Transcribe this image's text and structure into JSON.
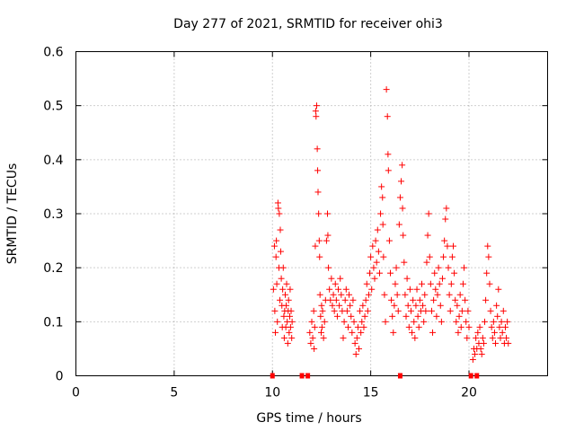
{
  "chart_data": {
    "type": "scatter",
    "title": "Day 277 of 2021, SRMTID for receiver ohi3",
    "xlabel": "GPS time / hours",
    "ylabel": "SRMTID / TECUs",
    "xlim": [
      0,
      24
    ],
    "ylim": [
      0,
      0.6
    ],
    "xticks": [
      0,
      5,
      10,
      15,
      20
    ],
    "yticks": [
      0,
      0.1,
      0.2,
      0.3,
      0.4,
      0.5,
      0.6
    ],
    "xtick_labels": [
      "0",
      "5",
      "10",
      "15",
      "20"
    ],
    "ytick_labels": [
      "0",
      "0.1",
      "0.2",
      "0.3",
      "0.4",
      "0.5",
      "0.6"
    ],
    "grid": true,
    "marker": "+",
    "color": "#ff0000",
    "series": [
      {
        "name": "SRMTID",
        "points": [
          [
            10.05,
            0.16
          ],
          [
            10.1,
            0.24
          ],
          [
            10.12,
            0.12
          ],
          [
            10.15,
            0.08
          ],
          [
            10.18,
            0.22
          ],
          [
            10.2,
            0.25
          ],
          [
            10.22,
            0.17
          ],
          [
            10.25,
            0.1
          ],
          [
            10.28,
            0.32
          ],
          [
            10.3,
            0.31
          ],
          [
            10.33,
            0.2
          ],
          [
            10.35,
            0.3
          ],
          [
            10.38,
            0.14
          ],
          [
            10.4,
            0.27
          ],
          [
            10.42,
            0.23
          ],
          [
            10.45,
            0.18
          ],
          [
            10.48,
            0.13
          ],
          [
            10.5,
            0.09
          ],
          [
            10.52,
            0.16
          ],
          [
            10.55,
            0.2
          ],
          [
            10.58,
            0.11
          ],
          [
            10.6,
            0.07
          ],
          [
            10.62,
            0.12
          ],
          [
            10.65,
            0.15
          ],
          [
            10.68,
            0.09
          ],
          [
            10.7,
            0.13
          ],
          [
            10.72,
            0.17
          ],
          [
            10.75,
            0.1
          ],
          [
            10.78,
            0.06
          ],
          [
            10.8,
            0.12
          ],
          [
            10.82,
            0.14
          ],
          [
            10.85,
            0.08
          ],
          [
            10.88,
            0.11
          ],
          [
            10.9,
            0.16
          ],
          [
            10.92,
            0.09
          ],
          [
            10.95,
            0.12
          ],
          [
            10.98,
            0.07
          ],
          [
            11.0,
            0.1
          ],
          [
            11.9,
            0.08
          ],
          [
            11.95,
            0.06
          ],
          [
            12.0,
            0.1
          ],
          [
            12.05,
            0.07
          ],
          [
            12.1,
            0.12
          ],
          [
            12.12,
            0.05
          ],
          [
            12.15,
            0.09
          ],
          [
            12.18,
            0.24
          ],
          [
            12.2,
            0.49
          ],
          [
            12.22,
            0.48
          ],
          [
            12.25,
            0.5
          ],
          [
            12.28,
            0.42
          ],
          [
            12.3,
            0.38
          ],
          [
            12.32,
            0.34
          ],
          [
            12.35,
            0.3
          ],
          [
            12.38,
            0.25
          ],
          [
            12.4,
            0.22
          ],
          [
            12.42,
            0.15
          ],
          [
            12.45,
            0.11
          ],
          [
            12.48,
            0.08
          ],
          [
            12.5,
            0.13
          ],
          [
            12.52,
            0.09
          ],
          [
            12.55,
            0.12
          ],
          [
            12.6,
            0.07
          ],
          [
            12.65,
            0.1
          ],
          [
            12.7,
            0.14
          ],
          [
            12.75,
            0.25
          ],
          [
            12.8,
            0.3
          ],
          [
            12.82,
            0.26
          ],
          [
            12.85,
            0.2
          ],
          [
            12.9,
            0.16
          ],
          [
            12.95,
            0.14
          ],
          [
            13.0,
            0.18
          ],
          [
            13.05,
            0.13
          ],
          [
            13.1,
            0.15
          ],
          [
            13.15,
            0.12
          ],
          [
            13.2,
            0.17
          ],
          [
            13.25,
            0.14
          ],
          [
            13.3,
            0.11
          ],
          [
            13.35,
            0.16
          ],
          [
            13.4,
            0.13
          ],
          [
            13.45,
            0.18
          ],
          [
            13.5,
            0.15
          ],
          [
            13.55,
            0.12
          ],
          [
            13.6,
            0.07
          ],
          [
            13.65,
            0.1
          ],
          [
            13.7,
            0.14
          ],
          [
            13.75,
            0.16
          ],
          [
            13.8,
            0.12
          ],
          [
            13.85,
            0.09
          ],
          [
            13.9,
            0.15
          ],
          [
            13.95,
            0.13
          ],
          [
            14.0,
            0.11
          ],
          [
            14.05,
            0.08
          ],
          [
            14.1,
            0.14
          ],
          [
            14.15,
            0.1
          ],
          [
            14.2,
            0.06
          ],
          [
            14.25,
            0.04
          ],
          [
            14.3,
            0.07
          ],
          [
            14.35,
            0.09
          ],
          [
            14.4,
            0.05
          ],
          [
            14.45,
            0.12
          ],
          [
            14.5,
            0.08
          ],
          [
            14.55,
            0.1
          ],
          [
            14.6,
            0.13
          ],
          [
            14.65,
            0.09
          ],
          [
            14.7,
            0.11
          ],
          [
            14.75,
            0.14
          ],
          [
            14.8,
            0.17
          ],
          [
            14.85,
            0.12
          ],
          [
            14.9,
            0.15
          ],
          [
            14.95,
            0.19
          ],
          [
            15.0,
            0.22
          ],
          [
            15.05,
            0.16
          ],
          [
            15.1,
            0.24
          ],
          [
            15.15,
            0.2
          ],
          [
            15.2,
            0.18
          ],
          [
            15.25,
            0.25
          ],
          [
            15.3,
            0.21
          ],
          [
            15.35,
            0.27
          ],
          [
            15.4,
            0.23
          ],
          [
            15.45,
            0.19
          ],
          [
            15.5,
            0.3
          ],
          [
            15.55,
            0.35
          ],
          [
            15.6,
            0.33
          ],
          [
            15.62,
            0.28
          ],
          [
            15.65,
            0.22
          ],
          [
            15.7,
            0.15
          ],
          [
            15.75,
            0.1
          ],
          [
            15.8,
            0.53
          ],
          [
            15.85,
            0.48
          ],
          [
            15.88,
            0.41
          ],
          [
            15.9,
            0.38
          ],
          [
            15.95,
            0.25
          ],
          [
            16.0,
            0.19
          ],
          [
            16.05,
            0.14
          ],
          [
            16.1,
            0.11
          ],
          [
            16.15,
            0.08
          ],
          [
            16.2,
            0.13
          ],
          [
            16.25,
            0.17
          ],
          [
            16.3,
            0.2
          ],
          [
            16.35,
            0.15
          ],
          [
            16.4,
            0.12
          ],
          [
            16.45,
            0.28
          ],
          [
            16.5,
            0.33
          ],
          [
            16.55,
            0.36
          ],
          [
            16.6,
            0.39
          ],
          [
            16.62,
            0.31
          ],
          [
            16.65,
            0.26
          ],
          [
            16.7,
            0.21
          ],
          [
            16.75,
            0.15
          ],
          [
            16.8,
            0.11
          ],
          [
            16.85,
            0.18
          ],
          [
            16.9,
            0.13
          ],
          [
            16.95,
            0.09
          ],
          [
            17.0,
            0.16
          ],
          [
            17.05,
            0.12
          ],
          [
            17.1,
            0.08
          ],
          [
            17.15,
            0.14
          ],
          [
            17.2,
            0.1
          ],
          [
            17.25,
            0.07
          ],
          [
            17.3,
            0.13
          ],
          [
            17.35,
            0.16
          ],
          [
            17.4,
            0.11
          ],
          [
            17.45,
            0.09
          ],
          [
            17.5,
            0.14
          ],
          [
            17.55,
            0.12
          ],
          [
            17.6,
            0.17
          ],
          [
            17.65,
            0.13
          ],
          [
            17.7,
            0.1
          ],
          [
            17.75,
            0.15
          ],
          [
            17.8,
            0.12
          ],
          [
            17.85,
            0.21
          ],
          [
            17.9,
            0.26
          ],
          [
            17.95,
            0.3
          ],
          [
            18.0,
            0.22
          ],
          [
            18.05,
            0.17
          ],
          [
            18.1,
            0.12
          ],
          [
            18.15,
            0.08
          ],
          [
            18.2,
            0.14
          ],
          [
            18.25,
            0.19
          ],
          [
            18.3,
            0.16
          ],
          [
            18.35,
            0.11
          ],
          [
            18.4,
            0.15
          ],
          [
            18.45,
            0.2
          ],
          [
            18.5,
            0.17
          ],
          [
            18.55,
            0.13
          ],
          [
            18.6,
            0.1
          ],
          [
            18.65,
            0.18
          ],
          [
            18.7,
            0.22
          ],
          [
            18.75,
            0.25
          ],
          [
            18.8,
            0.29
          ],
          [
            18.85,
            0.31
          ],
          [
            18.9,
            0.24
          ],
          [
            18.95,
            0.2
          ],
          [
            19.0,
            0.15
          ],
          [
            19.05,
            0.12
          ],
          [
            19.1,
            0.17
          ],
          [
            19.15,
            0.22
          ],
          [
            19.2,
            0.24
          ],
          [
            19.25,
            0.19
          ],
          [
            19.3,
            0.14
          ],
          [
            19.35,
            0.1
          ],
          [
            19.4,
            0.13
          ],
          [
            19.45,
            0.08
          ],
          [
            19.5,
            0.11
          ],
          [
            19.55,
            0.15
          ],
          [
            19.6,
            0.09
          ],
          [
            19.65,
            0.12
          ],
          [
            19.7,
            0.17
          ],
          [
            19.75,
            0.2
          ],
          [
            19.8,
            0.14
          ],
          [
            19.85,
            0.1
          ],
          [
            19.9,
            0.07
          ],
          [
            19.95,
            0.12
          ],
          [
            20.0,
            0.09
          ],
          [
            20.2,
            0.03
          ],
          [
            20.25,
            0.05
          ],
          [
            20.3,
            0.04
          ],
          [
            20.35,
            0.07
          ],
          [
            20.4,
            0.05
          ],
          [
            20.45,
            0.08
          ],
          [
            20.5,
            0.06
          ],
          [
            20.55,
            0.09
          ],
          [
            20.6,
            0.05
          ],
          [
            20.65,
            0.04
          ],
          [
            20.7,
            0.07
          ],
          [
            20.75,
            0.06
          ],
          [
            20.8,
            0.1
          ],
          [
            20.85,
            0.14
          ],
          [
            20.9,
            0.19
          ],
          [
            20.95,
            0.24
          ],
          [
            21.0,
            0.22
          ],
          [
            21.05,
            0.17
          ],
          [
            21.1,
            0.12
          ],
          [
            21.15,
            0.09
          ],
          [
            21.2,
            0.07
          ],
          [
            21.25,
            0.1
          ],
          [
            21.3,
            0.08
          ],
          [
            21.35,
            0.06
          ],
          [
            21.4,
            0.13
          ],
          [
            21.45,
            0.11
          ],
          [
            21.5,
            0.16
          ],
          [
            21.55,
            0.09
          ],
          [
            21.6,
            0.07
          ],
          [
            21.65,
            0.1
          ],
          [
            21.7,
            0.08
          ],
          [
            21.75,
            0.12
          ],
          [
            21.8,
            0.06
          ],
          [
            21.85,
            0.09
          ],
          [
            21.9,
            0.07
          ],
          [
            21.95,
            0.1
          ],
          [
            22.0,
            0.06
          ]
        ]
      }
    ],
    "baseline_marks": [
      10.0,
      11.5,
      11.8,
      16.5,
      20.1,
      20.4
    ]
  }
}
